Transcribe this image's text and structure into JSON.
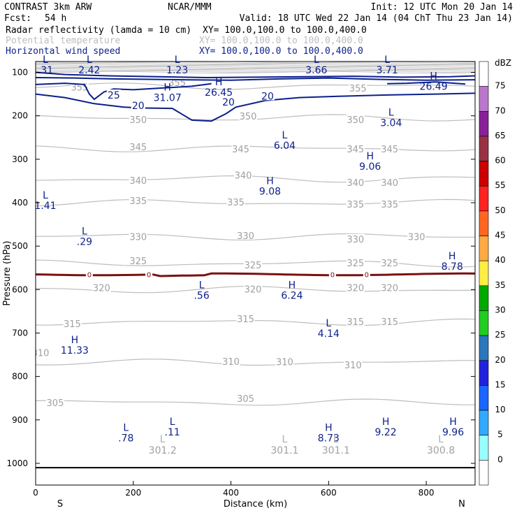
{
  "header": {
    "model": "CONTRAST  3km ARW",
    "center": "NCAR/MMM",
    "init": "Init: 12 UTC Mon 20 Jan 14",
    "fcst_label": "Fcst:",
    "fcst_value": "54 h",
    "valid": "Valid: 18 UTC Wed 22 Jan 14 (04 ChT Thu 23 Jan 14)"
  },
  "fields": [
    {
      "name": "Radar reflectivity (lamda = 10 cm)",
      "xy": "XY=  100.0,100.0 to 100.0,400.0",
      "color": "#000000"
    },
    {
      "name": "Potential temperature",
      "xy": "XY=  100.0,100.0 to 100.0,400.0",
      "color": "#bdbdbd"
    },
    {
      "name": "Horizontal wind speed",
      "xy": "XY=  100.0,100.0 to 100.0,400.0",
      "color": "#0b1f8a"
    }
  ],
  "chart_data": {
    "type": "contour-cross-section",
    "xlabel": "Distance (km)",
    "ylabel": "Pressure (hPa)",
    "xlim": [
      0,
      900
    ],
    "ylim": [
      1050,
      75
    ],
    "x_ticks": [
      0,
      200,
      400,
      600,
      800
    ],
    "y_ticks": [
      100,
      200,
      300,
      400,
      500,
      600,
      700,
      800,
      900,
      1000
    ],
    "x_end_labels": {
      "left": "S",
      "right": "N"
    },
    "ground_pressure": 1010,
    "colorbar": {
      "unit": "dBZ",
      "levels": [
        0,
        5,
        10,
        15,
        20,
        25,
        30,
        35,
        40,
        45,
        50,
        55,
        60,
        65,
        70,
        75
      ],
      "colors": [
        "#ffffff",
        "#99ffff",
        "#33aaff",
        "#1a66ff",
        "#2222dd",
        "#2a77bb",
        "#22cc22",
        "#00aa00",
        "#ffee44",
        "#ffaa44",
        "#ff6622",
        "#ff2222",
        "#cc0000",
        "#993344",
        "#882299",
        "#bb77cc"
      ]
    },
    "theta_lines": [
      {
        "level": 355,
        "labels": [
          {
            "x": 90,
            "p": 135,
            "text": "355"
          },
          {
            "x": 290,
            "p": 125,
            "text": "355"
          },
          {
            "x": 660,
            "p": 138,
            "text": "355"
          }
        ]
      },
      {
        "level": 350,
        "labels": [
          {
            "x": 210,
            "p": 210,
            "text": "350"
          },
          {
            "x": 435,
            "p": 202,
            "text": "350"
          },
          {
            "x": 655,
            "p": 210,
            "text": "350"
          }
        ]
      },
      {
        "level": 345,
        "labels": [
          {
            "x": 210,
            "p": 273,
            "text": "345"
          },
          {
            "x": 420,
            "p": 278,
            "text": "345"
          },
          {
            "x": 655,
            "p": 278,
            "text": "345"
          },
          {
            "x": 725,
            "p": 278,
            "text": "345"
          }
        ]
      },
      {
        "level": 340,
        "labels": [
          {
            "x": 210,
            "p": 350,
            "text": "340"
          },
          {
            "x": 425,
            "p": 338,
            "text": "340"
          },
          {
            "x": 655,
            "p": 355,
            "text": "340"
          },
          {
            "x": 725,
            "p": 355,
            "text": "340"
          }
        ]
      },
      {
        "level": 335,
        "labels": [
          {
            "x": 210,
            "p": 397,
            "text": "335"
          },
          {
            "x": 410,
            "p": 400,
            "text": "335"
          },
          {
            "x": 655,
            "p": 405,
            "text": "335"
          },
          {
            "x": 725,
            "p": 405,
            "text": "335"
          }
        ]
      },
      {
        "level": 330,
        "labels": [
          {
            "x": 210,
            "p": 480,
            "text": "330"
          },
          {
            "x": 430,
            "p": 477,
            "text": "330"
          },
          {
            "x": 655,
            "p": 485,
            "text": "330"
          },
          {
            "x": 780,
            "p": 480,
            "text": "330"
          }
        ]
      },
      {
        "level": 325,
        "labels": [
          {
            "x": 210,
            "p": 535,
            "text": "325"
          },
          {
            "x": 445,
            "p": 545,
            "text": "325"
          },
          {
            "x": 655,
            "p": 540,
            "text": "325"
          },
          {
            "x": 725,
            "p": 540,
            "text": "325"
          }
        ]
      },
      {
        "level": 320,
        "labels": [
          {
            "x": 135,
            "p": 597,
            "text": "320"
          },
          {
            "x": 445,
            "p": 600,
            "text": "320"
          },
          {
            "x": 655,
            "p": 597,
            "text": "320"
          },
          {
            "x": 725,
            "p": 597,
            "text": "320"
          }
        ]
      },
      {
        "level": 315,
        "labels": [
          {
            "x": 75,
            "p": 680,
            "text": "315"
          },
          {
            "x": 430,
            "p": 669,
            "text": "315"
          },
          {
            "x": 655,
            "p": 675,
            "text": "315"
          },
          {
            "x": 725,
            "p": 675,
            "text": "315"
          }
        ]
      },
      {
        "level": 310,
        "labels": [
          {
            "x": 10,
            "p": 747,
            "text": "310"
          },
          {
            "x": 400,
            "p": 767,
            "text": "310"
          },
          {
            "x": 510,
            "p": 768,
            "text": "310"
          },
          {
            "x": 650,
            "p": 775,
            "text": "310"
          }
        ]
      },
      {
        "level": 305,
        "labels": [
          {
            "x": 40,
            "p": 862,
            "text": "305"
          },
          {
            "x": 430,
            "p": 852,
            "text": "305"
          }
        ]
      }
    ],
    "wind_contours": [
      {
        "level": 25,
        "labels": [
          {
            "x": 160,
            "p": 154,
            "text": "25"
          }
        ]
      },
      {
        "level": 20,
        "labels": [
          {
            "x": 210,
            "p": 178,
            "text": "20"
          },
          {
            "x": 395,
            "p": 170,
            "text": "20"
          },
          {
            "x": 475,
            "p": 156,
            "text": "20"
          }
        ]
      }
    ],
    "zero_dbz_line": {
      "labels": [
        {
          "x": 110,
          "text": "0"
        },
        {
          "x": 232,
          "text": "0"
        },
        {
          "x": 608,
          "text": "0"
        },
        {
          "x": 678,
          "text": "0"
        }
      ]
    },
    "wind_extrema": [
      {
        "kind": "L",
        "value": ".31",
        "x": 20,
        "p": 78
      },
      {
        "kind": "L",
        "value": "2.42",
        "x": 110,
        "p": 78
      },
      {
        "kind": "L",
        "value": "1.23",
        "x": 290,
        "p": 78
      },
      {
        "kind": "L",
        "value": "3.66",
        "x": 575,
        "p": 78
      },
      {
        "kind": "L",
        "value": "3.71",
        "x": 720,
        "p": 78
      },
      {
        "kind": "H",
        "value": "31.07",
        "x": 270,
        "p": 142
      },
      {
        "kind": "H",
        "value": "26.45",
        "x": 375,
        "p": 130
      },
      {
        "kind": "H",
        "value": "26.49",
        "x": 815,
        "p": 116
      },
      {
        "kind": "L",
        "value": "3.04",
        "x": 728,
        "p": 200
      },
      {
        "kind": "L",
        "value": "6.04",
        "x": 510,
        "p": 252
      },
      {
        "kind": "H",
        "value": "9.06",
        "x": 685,
        "p": 300
      },
      {
        "kind": "H",
        "value": "9.08",
        "x": 480,
        "p": 357
      },
      {
        "kind": "L",
        "value": "1.41",
        "x": 20,
        "p": 390
      },
      {
        "kind": "L",
        "value": ".29",
        "x": 100,
        "p": 473
      },
      {
        "kind": "H",
        "value": "8.78",
        "x": 853,
        "p": 530
      },
      {
        "kind": "L",
        "value": ".56",
        "x": 340,
        "p": 597
      },
      {
        "kind": "H",
        "value": "6.24",
        "x": 525,
        "p": 597
      },
      {
        "kind": "L",
        "value": "4.14",
        "x": 600,
        "p": 685
      },
      {
        "kind": "H",
        "value": "11.33",
        "x": 80,
        "p": 723
      },
      {
        "kind": "L",
        "value": ".78",
        "x": 185,
        "p": 925
      },
      {
        "kind": "L",
        "value": ".11",
        "x": 280,
        "p": 912
      },
      {
        "kind": "H",
        "value": "8.73",
        "x": 600,
        "p": 925
      },
      {
        "kind": "H",
        "value": "9.22",
        "x": 717,
        "p": 912
      },
      {
        "kind": "H",
        "value": "9.96",
        "x": 855,
        "p": 912
      }
    ],
    "theta_extrema": [
      {
        "kind": "L",
        "value": "301.2",
        "x": 260,
        "p": 968
      },
      {
        "kind": "L",
        "value": "301.1",
        "x": 510,
        "p": 968
      },
      {
        "kind": "L",
        "value": "301.1",
        "x": 615,
        "p": 968
      },
      {
        "kind": "L",
        "value": "300.8",
        "x": 830,
        "p": 968
      }
    ]
  }
}
